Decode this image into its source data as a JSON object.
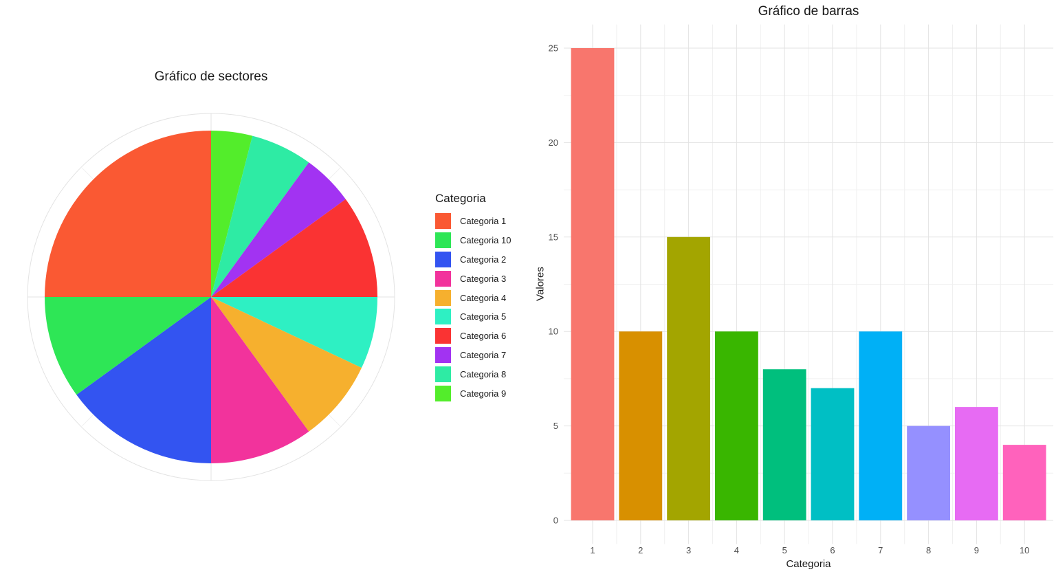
{
  "chart_data": [
    {
      "type": "pie",
      "title": "Gráfico de sectores",
      "legend_title": "Categoria",
      "legend_position": "right",
      "categories": [
        "Categoria 1",
        "Categoria 10",
        "Categoria 2",
        "Categoria 3",
        "Categoria 4",
        "Categoria 5",
        "Categoria 6",
        "Categoria 7",
        "Categoria 8",
        "Categoria 9"
      ],
      "values": [
        25,
        10,
        15,
        10,
        8,
        7,
        10,
        5,
        6,
        4
      ],
      "colors": [
        "#FA5933",
        "#2EE656",
        "#3354F1",
        "#F2339C",
        "#F6B02E",
        "#2EF0C3",
        "#FA3333",
        "#A233F2",
        "#2EEBA4",
        "#53ED2B"
      ],
      "total": 100,
      "direction": "counterclockwise-from-top",
      "grid": "polar-outer-circle"
    },
    {
      "type": "bar",
      "title": "Gráfico de barras",
      "xlabel": "Categoria",
      "ylabel": "Valores",
      "categories": [
        "1",
        "2",
        "3",
        "4",
        "5",
        "6",
        "7",
        "8",
        "9",
        "10"
      ],
      "values": [
        25,
        10,
        15,
        10,
        8,
        7,
        10,
        5,
        6,
        4
      ],
      "colors": [
        "#F8766D",
        "#D89000",
        "#A3A500",
        "#39B600",
        "#00BF7D",
        "#00BFC4",
        "#00B0F6",
        "#9590FF",
        "#E76BF3",
        "#FF62BC"
      ],
      "yticks": [
        0,
        5,
        10,
        15,
        20,
        25
      ],
      "yticks_minor": [
        2.5,
        7.5,
        12.5,
        17.5,
        22.5
      ],
      "ylim": [
        0,
        25
      ],
      "grid": true,
      "legend": false
    }
  ],
  "style": {
    "background": "#ffffff",
    "grid_major_color": "#e3e3e3",
    "grid_minor_color": "#f0f0f0",
    "tick_label_color": "#4d4d4d",
    "title_color": "#1a1a1a"
  }
}
